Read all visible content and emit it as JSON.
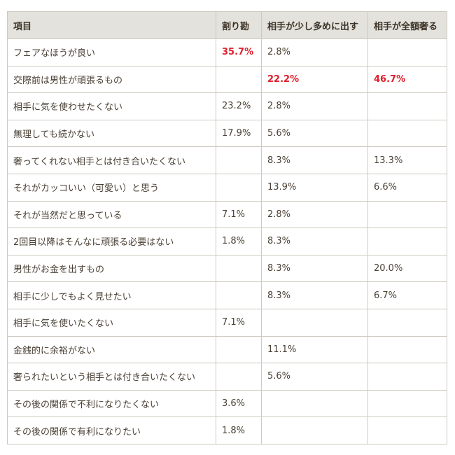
{
  "colors": {
    "highlight": "#e0202c",
    "header_bg": "#e3e2dd",
    "text": "#4a4034",
    "border": "#cdc9bf"
  },
  "table": {
    "headers": [
      "項目",
      "割り勘",
      "相手が少し多めに出す",
      "相手が全額奢る"
    ],
    "rows": [
      {
        "cells": [
          "フェアなほうが良い",
          "35.7%",
          "2.8%",
          ""
        ],
        "highlight": [
          1
        ]
      },
      {
        "cells": [
          "交際前は男性が頑張るもの",
          "",
          "22.2%",
          "46.7%"
        ],
        "highlight": [
          2,
          3
        ]
      },
      {
        "cells": [
          "相手に気を使わせたくない",
          "23.2%",
          "2.8%",
          ""
        ],
        "highlight": []
      },
      {
        "cells": [
          "無理しても続かない",
          "17.9%",
          "5.6%",
          ""
        ],
        "highlight": []
      },
      {
        "cells": [
          "奢ってくれない相手とは付き合いたくない",
          "",
          "8.3%",
          "13.3%"
        ],
        "highlight": []
      },
      {
        "cells": [
          "それがカッコいい（可愛い）と思う",
          "",
          "13.9%",
          "6.6%"
        ],
        "highlight": []
      },
      {
        "cells": [
          "それが当然だと思っている",
          "7.1%",
          "2.8%",
          ""
        ],
        "highlight": []
      },
      {
        "cells": [
          "2回目以降はそんなに頑張る必要はない",
          "1.8%",
          "8.3%",
          ""
        ],
        "highlight": []
      },
      {
        "cells": [
          "男性がお金を出すもの",
          "",
          "8.3%",
          "20.0%"
        ],
        "highlight": []
      },
      {
        "cells": [
          "相手に少しでもよく見せたい",
          "",
          "8.3%",
          "6.7%"
        ],
        "highlight": []
      },
      {
        "cells": [
          "相手に気を使いたくない",
          "7.1%",
          "",
          ""
        ],
        "highlight": []
      },
      {
        "cells": [
          "金銭的に余裕がない",
          "",
          "11.1%",
          ""
        ],
        "highlight": []
      },
      {
        "cells": [
          "奢られたいという相手とは付き合いたくない",
          "",
          "5.6%",
          ""
        ],
        "highlight": []
      },
      {
        "cells": [
          "その後の関係で不利になりたくない",
          "3.6%",
          "",
          ""
        ],
        "highlight": []
      },
      {
        "cells": [
          "その後の関係で有利になりたい",
          "1.8%",
          "",
          ""
        ],
        "highlight": []
      }
    ]
  }
}
